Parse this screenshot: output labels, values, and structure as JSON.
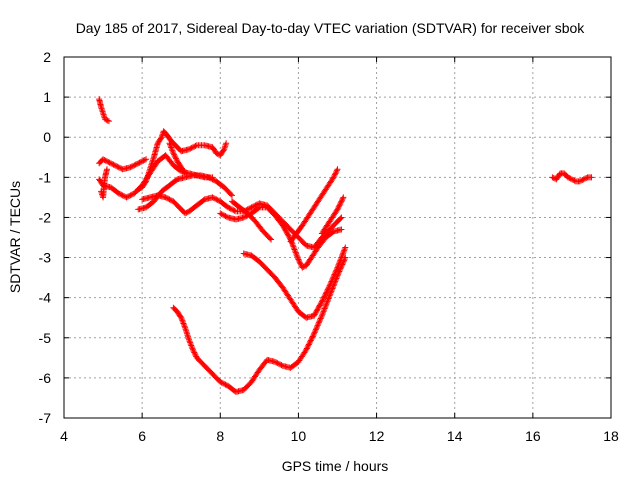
{
  "chart_data": {
    "type": "scatter",
    "title": "Day 185 of 2017, Sidereal Day-to-day VTEC variation (SDTVAR) for receiver sbok",
    "xlabel": "GPS time / hours",
    "ylabel": "SDTVAR / TECUs",
    "xlim": [
      4,
      18
    ],
    "ylim": [
      -7,
      2
    ],
    "xticks": [
      "4",
      "6",
      "8",
      "10",
      "12",
      "14",
      "16",
      "18"
    ],
    "yticks": [
      "-7",
      "-6",
      "-5",
      "-4",
      "-3",
      "-2",
      "-1",
      "0",
      "1",
      "2"
    ],
    "grid": true,
    "marker": "plus",
    "color": "#ff0000",
    "series": [
      {
        "points": [
          [
            4.9,
            0.95
          ],
          [
            4.95,
            0.75
          ],
          [
            5.0,
            0.6
          ],
          [
            5.05,
            0.45
          ],
          [
            5.15,
            0.4
          ]
        ]
      },
      {
        "points": [
          [
            4.9,
            -0.65
          ],
          [
            5.0,
            -0.55
          ],
          [
            5.1,
            -0.6
          ],
          [
            5.3,
            -0.7
          ],
          [
            5.5,
            -0.8
          ],
          [
            5.7,
            -0.75
          ],
          [
            5.9,
            -0.65
          ],
          [
            6.1,
            -0.55
          ]
        ]
      },
      {
        "points": [
          [
            4.9,
            -1.05
          ],
          [
            5.0,
            -1.2
          ],
          [
            5.2,
            -1.25
          ],
          [
            5.4,
            -1.4
          ],
          [
            5.6,
            -1.5
          ],
          [
            5.8,
            -1.4
          ],
          [
            6.0,
            -1.2
          ],
          [
            6.2,
            -0.9
          ],
          [
            6.4,
            -0.6
          ],
          [
            6.6,
            -0.45
          ],
          [
            6.8,
            -0.7
          ],
          [
            7.0,
            -0.85
          ],
          [
            7.2,
            -0.9
          ],
          [
            7.4,
            -0.95
          ],
          [
            7.6,
            -1.0
          ],
          [
            7.8,
            -1.0
          ]
        ]
      },
      {
        "points": [
          [
            4.95,
            -1.35
          ],
          [
            5.0,
            -1.5
          ],
          [
            5.05,
            -1.0
          ],
          [
            5.1,
            -0.8
          ]
        ]
      },
      {
        "points": [
          [
            5.9,
            -1.8
          ],
          [
            6.1,
            -1.75
          ],
          [
            6.3,
            -1.6
          ],
          [
            6.5,
            -1.35
          ],
          [
            6.7,
            -1.2
          ],
          [
            6.9,
            -1.05
          ],
          [
            7.1,
            -1.0
          ],
          [
            7.3,
            -0.95
          ],
          [
            7.5,
            -0.95
          ],
          [
            7.7,
            -1.0
          ],
          [
            7.9,
            -1.1
          ],
          [
            8.1,
            -1.25
          ],
          [
            8.3,
            -1.45
          ]
        ]
      },
      {
        "points": [
          [
            5.9,
            -1.3
          ],
          [
            6.0,
            -1.25
          ],
          [
            6.1,
            -1.1
          ],
          [
            6.2,
            -0.8
          ],
          [
            6.3,
            -0.5
          ],
          [
            6.4,
            -0.15
          ],
          [
            6.5,
            0.0
          ],
          [
            6.55,
            0.15
          ],
          [
            6.6,
            0.1
          ],
          [
            6.75,
            -0.1
          ],
          [
            6.9,
            -0.25
          ],
          [
            7.0,
            -0.35
          ],
          [
            7.2,
            -0.3
          ],
          [
            7.4,
            -0.2
          ],
          [
            7.6,
            -0.2
          ],
          [
            7.8,
            -0.25
          ],
          [
            7.9,
            -0.4
          ],
          [
            8.0,
            -0.45
          ],
          [
            8.1,
            -0.3
          ],
          [
            8.15,
            -0.15
          ]
        ]
      },
      {
        "points": [
          [
            6.7,
            -0.15
          ],
          [
            6.8,
            -0.4
          ],
          [
            6.9,
            -0.6
          ],
          [
            7.0,
            -0.75
          ],
          [
            7.1,
            -0.9
          ]
        ]
      },
      {
        "points": [
          [
            6.0,
            -1.55
          ],
          [
            6.2,
            -1.5
          ],
          [
            6.4,
            -1.45
          ],
          [
            6.6,
            -1.5
          ],
          [
            6.8,
            -1.6
          ],
          [
            7.0,
            -1.8
          ],
          [
            7.1,
            -1.9
          ],
          [
            7.2,
            -1.85
          ],
          [
            7.4,
            -1.7
          ],
          [
            7.6,
            -1.55
          ],
          [
            7.8,
            -1.5
          ],
          [
            8.0,
            -1.6
          ],
          [
            8.2,
            -1.75
          ],
          [
            8.4,
            -1.85
          ],
          [
            8.6,
            -1.85
          ],
          [
            8.8,
            -1.75
          ],
          [
            9.0,
            -1.65
          ],
          [
            9.2,
            -1.7
          ],
          [
            9.4,
            -1.9
          ],
          [
            9.6,
            -2.1
          ],
          [
            9.8,
            -2.3
          ],
          [
            10.0,
            -2.5
          ],
          [
            10.2,
            -2.7
          ],
          [
            10.4,
            -2.75
          ],
          [
            10.6,
            -2.5
          ],
          [
            10.8,
            -2.3
          ],
          [
            11.0,
            -2.1
          ],
          [
            11.1,
            -2.0
          ]
        ]
      },
      {
        "points": [
          [
            8.3,
            -1.6
          ],
          [
            8.5,
            -1.75
          ],
          [
            8.7,
            -1.9
          ],
          [
            8.9,
            -2.1
          ],
          [
            9.1,
            -2.35
          ],
          [
            9.3,
            -2.55
          ]
        ]
      },
      {
        "points": [
          [
            8.0,
            -1.9
          ],
          [
            8.2,
            -2.0
          ],
          [
            8.4,
            -2.05
          ],
          [
            8.6,
            -2.0
          ],
          [
            8.8,
            -1.9
          ],
          [
            9.0,
            -1.75
          ],
          [
            9.2,
            -1.75
          ],
          [
            9.4,
            -1.95
          ],
          [
            9.6,
            -2.2
          ],
          [
            9.8,
            -2.55
          ],
          [
            9.9,
            -2.8
          ],
          [
            10.0,
            -3.05
          ],
          [
            10.1,
            -3.25
          ],
          [
            10.2,
            -3.2
          ],
          [
            10.3,
            -3.05
          ],
          [
            10.5,
            -2.75
          ],
          [
            10.7,
            -2.5
          ],
          [
            10.9,
            -2.35
          ],
          [
            11.1,
            -2.3
          ]
        ]
      },
      {
        "points": [
          [
            9.8,
            -2.6
          ],
          [
            9.95,
            -2.4
          ],
          [
            10.1,
            -2.2
          ],
          [
            10.3,
            -1.9
          ],
          [
            10.5,
            -1.6
          ],
          [
            10.7,
            -1.3
          ],
          [
            10.9,
            -1.0
          ],
          [
            11.0,
            -0.8
          ]
        ]
      },
      {
        "points": [
          [
            10.6,
            -2.4
          ],
          [
            10.8,
            -2.1
          ],
          [
            11.0,
            -1.8
          ],
          [
            11.15,
            -1.5
          ]
        ]
      },
      {
        "points": [
          [
            8.6,
            -2.9
          ],
          [
            8.8,
            -2.95
          ],
          [
            9.0,
            -3.1
          ],
          [
            9.2,
            -3.3
          ],
          [
            9.4,
            -3.5
          ],
          [
            9.6,
            -3.75
          ],
          [
            9.8,
            -4.05
          ],
          [
            10.0,
            -4.35
          ],
          [
            10.2,
            -4.5
          ],
          [
            10.4,
            -4.45
          ],
          [
            10.6,
            -4.1
          ],
          [
            10.8,
            -3.7
          ],
          [
            11.0,
            -3.25
          ],
          [
            11.2,
            -2.75
          ]
        ]
      },
      {
        "points": [
          [
            6.8,
            -4.25
          ],
          [
            6.9,
            -4.35
          ],
          [
            7.0,
            -4.5
          ],
          [
            7.1,
            -4.75
          ],
          [
            7.2,
            -5.05
          ],
          [
            7.3,
            -5.3
          ],
          [
            7.4,
            -5.5
          ],
          [
            7.6,
            -5.7
          ],
          [
            7.8,
            -5.9
          ],
          [
            8.0,
            -6.1
          ],
          [
            8.2,
            -6.2
          ],
          [
            8.4,
            -6.35
          ],
          [
            8.6,
            -6.3
          ],
          [
            8.8,
            -6.1
          ],
          [
            9.0,
            -5.8
          ],
          [
            9.2,
            -5.55
          ],
          [
            9.4,
            -5.6
          ],
          [
            9.6,
            -5.7
          ],
          [
            9.8,
            -5.75
          ],
          [
            10.0,
            -5.6
          ],
          [
            10.2,
            -5.3
          ],
          [
            10.4,
            -4.9
          ],
          [
            10.6,
            -4.45
          ],
          [
            10.8,
            -3.95
          ],
          [
            11.0,
            -3.45
          ],
          [
            11.2,
            -3.0
          ]
        ]
      },
      {
        "points": [
          [
            16.5,
            -1.0
          ],
          [
            16.6,
            -1.05
          ],
          [
            16.7,
            -0.9
          ],
          [
            16.8,
            -0.9
          ],
          [
            16.9,
            -1.0
          ],
          [
            17.0,
            -1.05
          ],
          [
            17.1,
            -1.1
          ],
          [
            17.2,
            -1.1
          ],
          [
            17.3,
            -1.05
          ],
          [
            17.4,
            -1.0
          ],
          [
            17.5,
            -1.0
          ]
        ]
      }
    ]
  }
}
